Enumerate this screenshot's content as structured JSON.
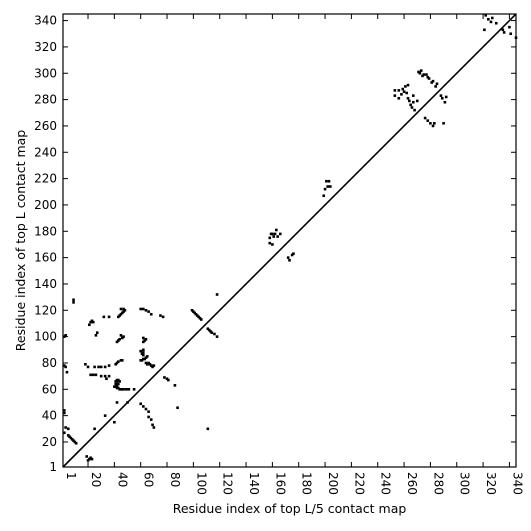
{
  "chart_data": {
    "type": "scatter",
    "title": "",
    "xlabel": "Residue index of top L/5 contact map",
    "ylabel": "Residue index of top L contact map",
    "xlim": [
      1,
      345
    ],
    "ylim": [
      1,
      345
    ],
    "x_ticks": [
      1,
      20,
      40,
      60,
      80,
      100,
      120,
      140,
      160,
      180,
      200,
      220,
      240,
      260,
      280,
      300,
      320,
      340
    ],
    "y_ticks": [
      1,
      20,
      40,
      60,
      80,
      100,
      120,
      140,
      160,
      180,
      200,
      220,
      240,
      260,
      280,
      300,
      320,
      340
    ],
    "diagonal_line": {
      "from": [
        1,
        1
      ],
      "to": [
        345,
        345
      ]
    },
    "grid": false,
    "series": [
      {
        "points": [
          [
            42,
            61
          ],
          [
            43,
            61
          ],
          [
            44,
            60
          ],
          [
            45,
            60
          ],
          [
            46,
            60
          ],
          [
            47,
            60
          ],
          [
            49,
            60
          ],
          [
            51,
            60
          ],
          [
            40,
            62
          ],
          [
            41,
            62
          ],
          [
            42,
            63
          ],
          [
            41,
            64
          ],
          [
            42,
            64
          ],
          [
            43,
            64
          ],
          [
            41,
            66
          ],
          [
            42,
            66
          ],
          [
            44,
            66
          ],
          [
            42,
            67
          ],
          [
            43,
            67
          ],
          [
            41,
            79
          ],
          [
            42,
            80
          ],
          [
            43,
            81
          ],
          [
            45,
            82
          ],
          [
            46,
            82
          ],
          [
            42,
            96
          ],
          [
            43,
            97
          ],
          [
            44,
            98
          ],
          [
            46,
            99
          ],
          [
            47,
            100
          ],
          [
            45,
            101
          ],
          [
            43,
            115
          ],
          [
            44,
            116
          ],
          [
            45,
            117
          ],
          [
            46,
            118
          ],
          [
            47,
            119
          ],
          [
            48,
            120
          ],
          [
            45,
            121
          ],
          [
            47,
            121
          ],
          [
            26,
            101
          ],
          [
            27,
            103
          ],
          [
            21,
            109
          ],
          [
            22,
            111
          ],
          [
            24,
            111
          ],
          [
            23,
            112
          ],
          [
            32,
            115
          ],
          [
            36,
            115
          ],
          [
            2,
            100
          ],
          [
            3,
            101
          ],
          [
            60,
            82
          ],
          [
            61,
            82
          ],
          [
            62,
            83
          ],
          [
            63,
            83
          ],
          [
            64,
            84
          ],
          [
            65,
            85
          ],
          [
            62,
            86
          ],
          [
            61,
            87
          ],
          [
            62,
            88
          ],
          [
            60,
            89
          ],
          [
            62,
            90
          ],
          [
            64,
            80
          ],
          [
            65,
            79
          ],
          [
            66,
            80
          ],
          [
            67,
            79
          ],
          [
            68,
            78
          ],
          [
            69,
            77
          ],
          [
            70,
            78
          ],
          [
            62,
            96
          ],
          [
            63,
            97
          ],
          [
            64,
            98
          ],
          [
            62,
            99
          ],
          [
            60,
            121
          ],
          [
            62,
            121
          ],
          [
            64,
            120
          ],
          [
            66,
            119
          ],
          [
            68,
            117
          ],
          [
            75,
            116
          ],
          [
            78,
            69
          ],
          [
            80,
            68
          ],
          [
            81,
            67
          ],
          [
            60,
            49
          ],
          [
            62,
            47
          ],
          [
            64,
            45
          ],
          [
            66,
            43
          ],
          [
            66,
            39
          ],
          [
            68,
            37
          ],
          [
            69,
            33
          ],
          [
            70,
            31
          ],
          [
            99,
            120
          ],
          [
            100,
            119
          ],
          [
            101,
            118
          ],
          [
            102,
            117
          ],
          [
            103,
            116
          ],
          [
            104,
            115
          ],
          [
            105,
            114
          ],
          [
            106,
            113
          ],
          [
            111,
            106
          ],
          [
            112,
            105
          ],
          [
            113,
            104
          ],
          [
            114,
            103
          ],
          [
            116,
            102
          ],
          [
            118,
            100
          ],
          [
            2,
            44
          ],
          [
            2,
            42
          ],
          [
            3,
            31
          ],
          [
            5,
            30
          ],
          [
            2,
            27
          ],
          [
            2,
            78
          ],
          [
            3,
            77
          ],
          [
            4,
            73
          ],
          [
            5,
            25
          ],
          [
            6,
            24
          ],
          [
            7,
            23
          ],
          [
            8,
            22
          ],
          [
            9,
            21
          ],
          [
            10,
            20
          ],
          [
            11,
            19
          ],
          [
            20,
            6
          ],
          [
            21,
            7
          ],
          [
            22,
            8
          ],
          [
            23,
            7
          ],
          [
            19,
            9
          ],
          [
            9,
            126
          ],
          [
            9,
            128
          ],
          [
            18,
            79
          ],
          [
            20,
            77
          ],
          [
            25,
            77
          ],
          [
            28,
            77
          ],
          [
            30,
            77
          ],
          [
            33,
            77
          ],
          [
            36,
            78
          ],
          [
            22,
            71
          ],
          [
            24,
            71
          ],
          [
            26,
            71
          ],
          [
            30,
            70
          ],
          [
            33,
            70
          ],
          [
            34,
            68
          ],
          [
            36,
            70
          ],
          [
            40,
            35
          ],
          [
            42,
            50
          ],
          [
            50,
            50
          ],
          [
            55,
            60
          ],
          [
            33,
            40
          ],
          [
            86,
            63
          ],
          [
            88,
            46
          ],
          [
            111,
            30
          ],
          [
            118,
            132
          ],
          [
            77,
            115
          ],
          [
            25,
            30
          ],
          [
            158,
            171
          ],
          [
            158,
            175
          ],
          [
            159,
            178
          ],
          [
            160,
            170
          ],
          [
            160,
            178
          ],
          [
            161,
            176
          ],
          [
            162,
            178
          ],
          [
            163,
            181
          ],
          [
            164,
            176
          ],
          [
            166,
            178
          ],
          [
            172,
            160
          ],
          [
            173,
            158
          ],
          [
            175,
            162
          ],
          [
            176,
            163
          ],
          [
            199,
            207
          ],
          [
            200,
            212
          ],
          [
            201,
            218
          ],
          [
            202,
            214
          ],
          [
            203,
            218
          ],
          [
            204,
            214
          ],
          [
            253,
            283
          ],
          [
            253,
            287
          ],
          [
            256,
            281
          ],
          [
            256,
            287
          ],
          [
            259,
            288
          ],
          [
            261,
            290
          ],
          [
            262,
            285
          ],
          [
            263,
            281
          ],
          [
            263,
            291
          ],
          [
            264,
            279
          ],
          [
            265,
            276
          ],
          [
            266,
            274
          ],
          [
            267,
            278
          ],
          [
            267,
            283
          ],
          [
            270,
            279
          ],
          [
            271,
            301
          ],
          [
            272,
            300
          ],
          [
            273,
            302
          ],
          [
            275,
            299
          ],
          [
            276,
            266
          ],
          [
            277,
            299
          ],
          [
            278,
            264
          ],
          [
            278,
            297
          ],
          [
            280,
            262
          ],
          [
            281,
            293
          ],
          [
            282,
            260
          ],
          [
            282,
            294
          ],
          [
            283,
            262
          ],
          [
            285,
            292
          ],
          [
            288,
            283
          ],
          [
            289,
            281
          ],
          [
            290,
            262
          ],
          [
            291,
            278
          ],
          [
            292,
            282
          ],
          [
            258,
            284
          ],
          [
            260,
            286
          ],
          [
            268,
            272
          ],
          [
            274,
            298
          ],
          [
            279,
            296
          ],
          [
            284,
            290
          ],
          [
            321,
            333
          ],
          [
            322,
            344
          ],
          [
            324,
            341
          ],
          [
            326,
            339
          ],
          [
            327,
            342
          ],
          [
            330,
            338
          ],
          [
            335,
            333
          ],
          [
            336,
            331
          ],
          [
            340,
            335
          ],
          [
            341,
            330
          ],
          [
            345,
            327
          ]
        ]
      }
    ]
  }
}
